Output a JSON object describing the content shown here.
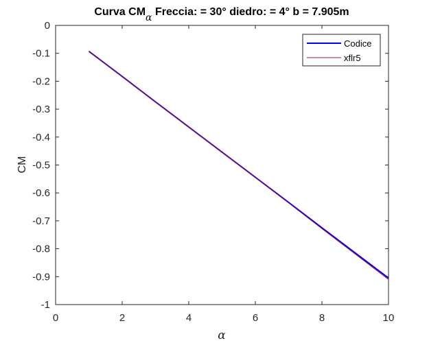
{
  "chart_data": {
    "type": "line",
    "title_parts": {
      "prefix": "Curva CM",
      "subscript": "α",
      "suffix": " Freccia: = 30° diedro: = 4° b = 7.905m"
    },
    "xlabel": "α",
    "ylabel": "CM",
    "xlim": [
      0,
      10
    ],
    "ylim": [
      -1,
      0
    ],
    "xticks": [
      0,
      2,
      4,
      6,
      8,
      10
    ],
    "yticks": [
      0,
      -0.1,
      -0.2,
      -0.3,
      -0.4,
      -0.5,
      -0.6,
      -0.7,
      -0.8,
      -0.9,
      -1
    ],
    "xtick_labels": [
      "0",
      "2",
      "4",
      "6",
      "8",
      "10"
    ],
    "ytick_labels": [
      "0",
      "-0.1",
      "-0.2",
      "-0.3",
      "-0.4",
      "-0.5",
      "-0.6",
      "-0.7",
      "-0.8",
      "-0.9",
      "-1"
    ],
    "grid": false,
    "legend_position": "top-right",
    "series": [
      {
        "name": "Codice",
        "color": "#0000ff",
        "x": [
          1,
          2,
          3,
          4,
          5,
          6,
          7,
          8,
          9,
          10
        ],
        "y": [
          -0.093,
          -0.183,
          -0.274,
          -0.364,
          -0.454,
          -0.544,
          -0.634,
          -0.725,
          -0.815,
          -0.905
        ]
      },
      {
        "name": "xflr5",
        "color": "#a2142f",
        "x": [
          1,
          2,
          3,
          4,
          5,
          6,
          7,
          8,
          9,
          10
        ],
        "y": [
          -0.093,
          -0.184,
          -0.275,
          -0.365,
          -0.455,
          -0.545,
          -0.636,
          -0.728,
          -0.819,
          -0.91
        ]
      }
    ]
  }
}
